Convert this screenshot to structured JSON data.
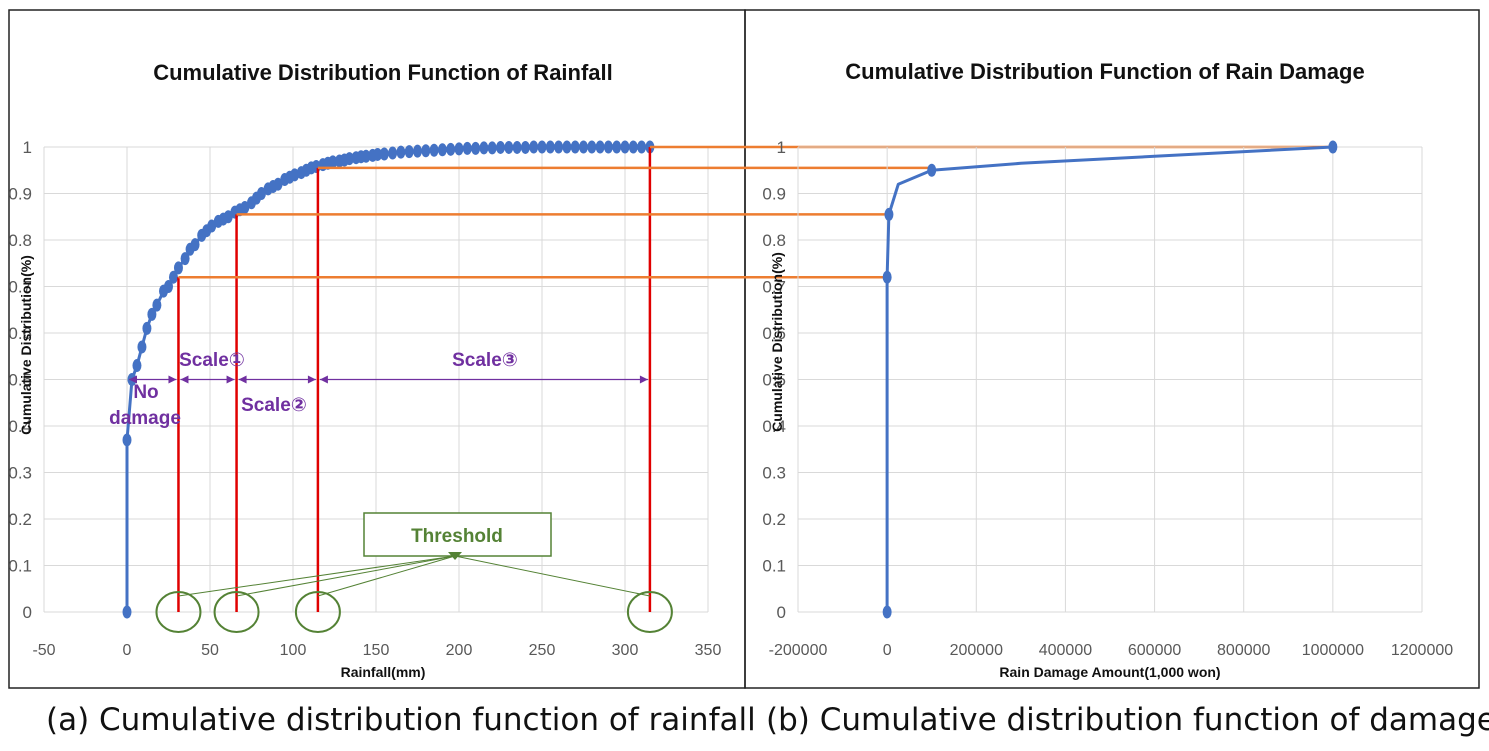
{
  "colors": {
    "series": "#4472c4",
    "grid": "#d9d9d9",
    "axis_text": "#595959",
    "title": "#111111",
    "threshold": "#e00000",
    "connector": "#ed7d31",
    "scale": "#7030a0",
    "annotation_green": "#548235"
  },
  "captions": {
    "a": "(a) Cumulative distribution function of rainfall",
    "b": "(b) Cumulative distribution function of damage"
  },
  "chart_data": [
    {
      "id": "rainfall",
      "type": "line",
      "title": "Cumulative Distribution Function of Rainfall",
      "xlabel": "Rainfall(mm)",
      "ylabel": "Cumulative Distribution(%)",
      "xlim": [
        -50,
        350
      ],
      "ylim": [
        0,
        1
      ],
      "xticks": [
        -50,
        0,
        50,
        100,
        150,
        200,
        250,
        300,
        350
      ],
      "yticks": [
        0,
        0.1,
        0.2,
        0.3,
        0.4,
        0.5,
        0.6,
        0.7,
        0.8,
        0.9,
        1
      ],
      "grid": true,
      "series": [
        {
          "name": "Rainfall CDF",
          "x": [
            0,
            0,
            3,
            6,
            9,
            12,
            15,
            18,
            22,
            25,
            28,
            31,
            35,
            38,
            41,
            45,
            48,
            51,
            55,
            58,
            61,
            65,
            68,
            71,
            75,
            78,
            81,
            85,
            88,
            91,
            95,
            98,
            101,
            105,
            108,
            111,
            114,
            118,
            121,
            124,
            128,
            131,
            134,
            138,
            141,
            144,
            148,
            151,
            155,
            160,
            165,
            170,
            175,
            180,
            185,
            190,
            195,
            200,
            205,
            210,
            215,
            220,
            225,
            230,
            235,
            240,
            245,
            250,
            255,
            260,
            265,
            270,
            275,
            280,
            285,
            290,
            295,
            300,
            305,
            310,
            315
          ],
          "y": [
            0,
            0.37,
            0.5,
            0.53,
            0.57,
            0.61,
            0.64,
            0.66,
            0.69,
            0.7,
            0.72,
            0.74,
            0.76,
            0.78,
            0.79,
            0.81,
            0.82,
            0.83,
            0.84,
            0.845,
            0.85,
            0.86,
            0.865,
            0.87,
            0.88,
            0.89,
            0.9,
            0.91,
            0.915,
            0.92,
            0.93,
            0.935,
            0.94,
            0.945,
            0.95,
            0.955,
            0.958,
            0.962,
            0.965,
            0.968,
            0.97,
            0.972,
            0.975,
            0.977,
            0.979,
            0.98,
            0.982,
            0.984,
            0.985,
            0.987,
            0.989,
            0.99,
            0.991,
            0.992,
            0.993,
            0.994,
            0.995,
            0.996,
            0.997,
            0.997,
            0.998,
            0.998,
            0.999,
            0.999,
            0.999,
            0.999,
            1,
            1,
            1,
            1,
            1,
            1,
            1,
            1,
            1,
            1,
            1,
            1,
            1,
            1,
            1
          ]
        }
      ],
      "thresholds": [
        {
          "x": 31,
          "y": 0.72
        },
        {
          "x": 66,
          "y": 0.855
        },
        {
          "x": 115,
          "y": 0.955
        },
        {
          "x": 315,
          "y": 1
        }
      ],
      "annotations": {
        "no_damage": "No damage",
        "no_damage_line1": "No",
        "no_damage_line2": "damage",
        "scale1": "Scale①",
        "scale2": "Scale②",
        "scale3": "Scale③",
        "scale_level": 0.5,
        "threshold_label": "Threshold"
      }
    },
    {
      "id": "damage",
      "type": "line",
      "title": "Cumulative Distribution Function of Rain Damage",
      "xlabel": "Rain Damage Amount(1,000 won)",
      "ylabel": "Cumulative Distribution(%)",
      "xlim": [
        -200000,
        1200000
      ],
      "ylim": [
        0,
        1
      ],
      "xticks": [
        -200000,
        0,
        200000,
        400000,
        600000,
        800000,
        1000000,
        1200000
      ],
      "yticks": [
        0,
        0.1,
        0.2,
        0.3,
        0.4,
        0.5,
        0.6,
        0.7,
        0.8,
        0.9,
        1
      ],
      "grid": true,
      "series": [
        {
          "name": "Damage CDF",
          "x": [
            0,
            0,
            4000,
            25000,
            100000,
            300000,
            600000,
            1000000
          ],
          "y": [
            0,
            0.72,
            0.855,
            0.92,
            0.95,
            0.965,
            0.98,
            1
          ],
          "markers": [
            {
              "x": 0,
              "y": 0
            },
            {
              "x": 0,
              "y": 0.72
            },
            {
              "x": 4000,
              "y": 0.855
            },
            {
              "x": 100000,
              "y": 0.95
            },
            {
              "x": 1000000,
              "y": 1
            }
          ]
        }
      ]
    }
  ]
}
